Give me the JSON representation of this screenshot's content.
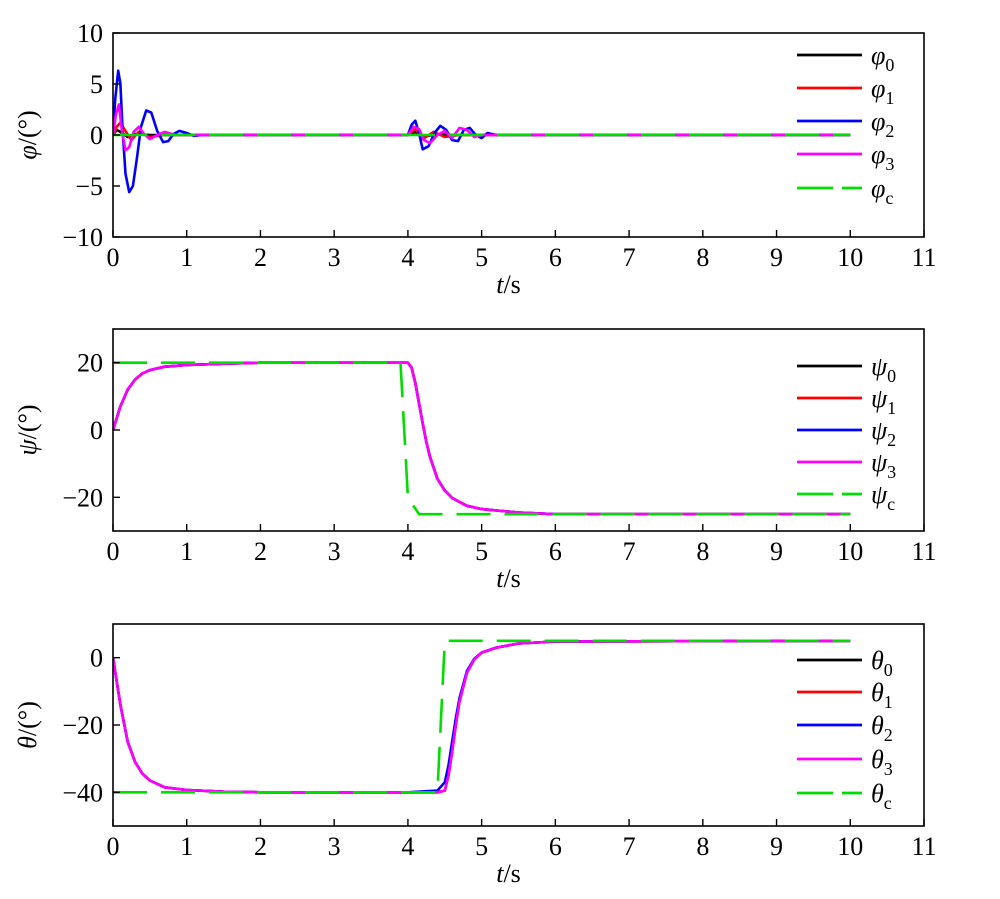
{
  "chart_data": [
    {
      "type": "line",
      "xlabel_var": "t",
      "xlabel_unit": "/s",
      "ylabel_var": "φ",
      "ylabel_unit": "/(°)",
      "xlim": [
        0,
        11
      ],
      "ylim": [
        -10,
        10
      ],
      "xticks": [
        0,
        1,
        2,
        3,
        4,
        5,
        6,
        7,
        8,
        9,
        10,
        11
      ],
      "yticks": [
        -10,
        -5,
        0,
        5,
        10
      ],
      "ytick_labels": [
        "−10",
        "−5",
        "0",
        "5",
        "10"
      ],
      "legend_position": "top-right",
      "series": [
        {
          "name_var": "φ",
          "name_sub": "0",
          "color": "#000000",
          "dash": "solid",
          "x": [
            0,
            0.05,
            0.1,
            0.2,
            0.3,
            0.5,
            0.8,
            1.2,
            4.0,
            4.1,
            4.2,
            4.4,
            4.6,
            4.8,
            5.0,
            10.0
          ],
          "y": [
            0,
            0.5,
            0.3,
            -0.2,
            0.1,
            0,
            0,
            0,
            0,
            0.3,
            -0.2,
            0.1,
            0,
            0,
            0,
            0
          ]
        },
        {
          "name_var": "φ",
          "name_sub": "1",
          "color": "#ff0000",
          "dash": "solid",
          "x": [
            0,
            0.05,
            0.1,
            0.15,
            0.25,
            0.35,
            0.5,
            0.7,
            1.0,
            4.0,
            4.1,
            4.2,
            4.35,
            4.5,
            4.7,
            5.0,
            10.0
          ],
          "y": [
            0,
            0.8,
            1.2,
            0.6,
            -0.5,
            0.3,
            -0.2,
            0,
            0,
            0,
            0.6,
            -0.4,
            0.3,
            -0.2,
            0,
            0,
            0
          ]
        },
        {
          "name_var": "φ",
          "name_sub": "2",
          "color": "#0000ff",
          "dash": "solid",
          "x": [
            0,
            0.03,
            0.07,
            0.1,
            0.13,
            0.17,
            0.22,
            0.27,
            0.32,
            0.38,
            0.45,
            0.52,
            0.6,
            0.68,
            0.75,
            0.82,
            0.9,
            1.0,
            1.1,
            1.2,
            4.0,
            4.05,
            4.1,
            4.15,
            4.2,
            4.28,
            4.36,
            4.44,
            4.52,
            4.6,
            4.68,
            4.76,
            4.84,
            4.92,
            5.0,
            5.08,
            5.2,
            10.0
          ],
          "y": [
            0,
            3.5,
            6.3,
            5.0,
            0.5,
            -3.8,
            -5.6,
            -5.0,
            -2.5,
            0.8,
            2.4,
            2.2,
            0.4,
            -0.7,
            -0.6,
            0.1,
            0.4,
            0.2,
            -0.1,
            0,
            0,
            1.0,
            1.4,
            0.2,
            -1.4,
            -1.1,
            0.2,
            0.9,
            0.5,
            -0.5,
            -0.6,
            0.5,
            0.7,
            0,
            -0.3,
            0.2,
            0,
            0
          ]
        },
        {
          "name_var": "φ",
          "name_sub": "3",
          "color": "#ff00ff",
          "dash": "solid",
          "x": [
            0,
            0.04,
            0.08,
            0.12,
            0.17,
            0.22,
            0.28,
            0.35,
            0.42,
            0.5,
            0.6,
            0.7,
            0.85,
            1.0,
            4.0,
            4.08,
            4.15,
            4.22,
            4.3,
            4.4,
            4.5,
            4.6,
            4.7,
            4.8,
            4.9,
            5.0,
            10.0
          ],
          "y": [
            0,
            2.0,
            3.0,
            0.5,
            -1.5,
            -1.2,
            0.3,
            0.8,
            0.1,
            -0.4,
            0,
            0.3,
            0,
            0,
            0,
            0.8,
            0.6,
            -0.5,
            -0.8,
            0,
            0.4,
            -0.3,
            0.7,
            0.5,
            -0.2,
            0,
            0
          ]
        },
        {
          "name_var": "φ",
          "name_sub": "c",
          "color": "#00dd00",
          "dash": "dash",
          "x": [
            0,
            10
          ],
          "y": [
            0,
            0
          ]
        }
      ]
    },
    {
      "type": "line",
      "xlabel_var": "t",
      "xlabel_unit": "/s",
      "ylabel_var": "ψ",
      "ylabel_unit": "/(°)",
      "xlim": [
        0,
        11
      ],
      "ylim": [
        -30,
        30
      ],
      "xticks": [
        0,
        1,
        2,
        3,
        4,
        5,
        6,
        7,
        8,
        9,
        10,
        11
      ],
      "yticks": [
        -20,
        0,
        20
      ],
      "ytick_labels": [
        "−20",
        "0",
        "20"
      ],
      "legend_position": "right",
      "series": [
        {
          "name_var": "ψ",
          "name_sub": "0",
          "color": "#000000",
          "dash": "solid",
          "x": [
            0,
            0.1,
            0.2,
            0.3,
            0.4,
            0.5,
            0.7,
            1.0,
            1.5,
            2.0,
            3.0,
            4.0,
            4.05,
            4.1,
            4.15,
            4.2,
            4.25,
            4.3,
            4.4,
            4.5,
            4.6,
            4.8,
            5.0,
            5.5,
            6.0,
            10.0
          ],
          "y": [
            0,
            7.0,
            12.0,
            15.0,
            16.8,
            17.8,
            18.8,
            19.3,
            19.7,
            20.0,
            20.0,
            20.0,
            18.5,
            14.0,
            8.0,
            2.0,
            -3.5,
            -8.0,
            -14.5,
            -18.0,
            -20.2,
            -22.5,
            -23.5,
            -24.5,
            -25.0,
            -25.0
          ]
        },
        {
          "name_var": "ψ",
          "name_sub": "1",
          "color": "#ff0000",
          "dash": "solid",
          "x": [
            0,
            0.1,
            0.2,
            0.3,
            0.4,
            0.5,
            0.7,
            1.0,
            1.5,
            2.0,
            3.0,
            4.0,
            4.05,
            4.1,
            4.15,
            4.2,
            4.25,
            4.3,
            4.4,
            4.5,
            4.6,
            4.8,
            5.0,
            5.5,
            6.0,
            10.0
          ],
          "y": [
            0,
            7.0,
            12.0,
            15.0,
            16.8,
            17.8,
            18.8,
            19.3,
            19.7,
            20.0,
            20.0,
            20.0,
            18.5,
            14.0,
            8.0,
            2.0,
            -3.5,
            -8.0,
            -14.5,
            -18.0,
            -20.2,
            -22.5,
            -23.5,
            -24.5,
            -25.0,
            -25.0
          ]
        },
        {
          "name_var": "ψ",
          "name_sub": "2",
          "color": "#0000ff",
          "dash": "solid",
          "x": [
            0,
            0.1,
            0.2,
            0.3,
            0.4,
            0.5,
            0.7,
            1.0,
            1.5,
            2.0,
            3.0,
            4.0,
            4.05,
            4.1,
            4.15,
            4.2,
            4.25,
            4.3,
            4.4,
            4.5,
            4.6,
            4.8,
            5.0,
            5.5,
            6.0,
            10.0
          ],
          "y": [
            0,
            7.0,
            12.0,
            15.0,
            16.8,
            17.8,
            18.8,
            19.3,
            19.7,
            20.0,
            20.0,
            20.0,
            18.5,
            14.0,
            8.0,
            2.0,
            -3.5,
            -8.0,
            -14.5,
            -18.0,
            -20.2,
            -22.5,
            -23.5,
            -24.5,
            -25.0,
            -25.0
          ]
        },
        {
          "name_var": "ψ",
          "name_sub": "3",
          "color": "#ff00ff",
          "dash": "solid",
          "x": [
            0,
            0.1,
            0.2,
            0.3,
            0.4,
            0.5,
            0.7,
            1.0,
            1.5,
            2.0,
            3.0,
            4.0,
            4.05,
            4.1,
            4.15,
            4.2,
            4.25,
            4.3,
            4.4,
            4.5,
            4.6,
            4.8,
            5.0,
            5.5,
            6.0,
            10.0
          ],
          "y": [
            0,
            7.0,
            12.0,
            15.0,
            16.8,
            17.8,
            18.8,
            19.3,
            19.7,
            20.0,
            20.0,
            20.0,
            18.5,
            14.0,
            8.0,
            2.0,
            -3.5,
            -8.0,
            -14.5,
            -18.0,
            -20.2,
            -22.5,
            -23.5,
            -24.5,
            -25.0,
            -25.0
          ]
        },
        {
          "name_var": "ψ",
          "name_sub": "c",
          "color": "#00dd00",
          "dash": "dash",
          "x": [
            0,
            3.9,
            4.0,
            4.15,
            10.0
          ],
          "y": [
            20,
            20,
            -20,
            -25,
            -25
          ]
        }
      ]
    },
    {
      "type": "line",
      "xlabel_var": "t",
      "xlabel_unit": "/s",
      "ylabel_var": "θ",
      "ylabel_unit": "/(°)",
      "xlim": [
        0,
        11
      ],
      "ylim": [
        -50,
        10
      ],
      "xticks": [
        0,
        1,
        2,
        3,
        4,
        5,
        6,
        7,
        8,
        9,
        10,
        11
      ],
      "yticks": [
        -40,
        -20,
        0
      ],
      "ytick_labels": [
        "−40",
        "−20",
        "0"
      ],
      "legend_position": "right",
      "series": [
        {
          "name_var": "θ",
          "name_sub": "0",
          "color": "#000000",
          "dash": "solid",
          "x": [
            0,
            0.1,
            0.2,
            0.3,
            0.4,
            0.5,
            0.7,
            1.0,
            1.5,
            2.0,
            3.0,
            4.0,
            4.4,
            4.5,
            4.55,
            4.6,
            4.65,
            4.7,
            4.8,
            4.9,
            5.0,
            5.2,
            5.5,
            6.0,
            10.0
          ],
          "y": [
            0,
            -14.0,
            -25.0,
            -31.0,
            -34.5,
            -36.5,
            -38.5,
            -39.3,
            -39.8,
            -40.0,
            -40.0,
            -40.0,
            -40.0,
            -39.5,
            -35.0,
            -28.0,
            -20.0,
            -13.0,
            -4.5,
            -0.5,
            1.5,
            3.0,
            4.2,
            4.8,
            5.0
          ]
        },
        {
          "name_var": "θ",
          "name_sub": "1",
          "color": "#ff0000",
          "dash": "solid",
          "x": [
            0,
            0.1,
            0.2,
            0.3,
            0.4,
            0.5,
            0.7,
            1.0,
            1.5,
            2.0,
            3.0,
            4.0,
            4.4,
            4.5,
            4.55,
            4.6,
            4.65,
            4.7,
            4.8,
            4.9,
            5.0,
            5.2,
            5.5,
            6.0,
            10.0
          ],
          "y": [
            0,
            -14.0,
            -25.0,
            -31.0,
            -34.5,
            -36.5,
            -38.5,
            -39.3,
            -39.8,
            -40.0,
            -40.0,
            -40.0,
            -40.0,
            -39.5,
            -35.0,
            -28.0,
            -20.0,
            -13.0,
            -4.5,
            -0.5,
            1.5,
            3.0,
            4.2,
            4.8,
            5.0
          ]
        },
        {
          "name_var": "θ",
          "name_sub": "2",
          "color": "#0000ff",
          "dash": "solid",
          "x": [
            0,
            0.1,
            0.2,
            0.3,
            0.4,
            0.5,
            0.7,
            1.0,
            1.5,
            2.0,
            3.0,
            4.0,
            4.4,
            4.5,
            4.55,
            4.6,
            4.65,
            4.7,
            4.8,
            4.9,
            5.0,
            5.2,
            5.5,
            6.0,
            10.0
          ],
          "y": [
            0,
            -14.0,
            -25.0,
            -31.0,
            -34.5,
            -36.5,
            -38.5,
            -39.3,
            -39.8,
            -40.0,
            -40.0,
            -40.0,
            -39.5,
            -37.0,
            -32.0,
            -25.0,
            -18.0,
            -12.0,
            -4.0,
            -0.3,
            1.5,
            3.0,
            4.2,
            4.8,
            5.0
          ]
        },
        {
          "name_var": "θ",
          "name_sub": "3",
          "color": "#ff00ff",
          "dash": "solid",
          "x": [
            0,
            0.1,
            0.2,
            0.3,
            0.4,
            0.5,
            0.7,
            1.0,
            1.5,
            2.0,
            3.0,
            4.0,
            4.4,
            4.5,
            4.55,
            4.6,
            4.65,
            4.7,
            4.8,
            4.9,
            5.0,
            5.2,
            5.5,
            6.0,
            10.0
          ],
          "y": [
            0,
            -14.0,
            -25.0,
            -31.0,
            -34.5,
            -36.5,
            -38.5,
            -39.3,
            -39.8,
            -40.0,
            -40.0,
            -40.0,
            -40.0,
            -39.5,
            -35.0,
            -28.0,
            -20.0,
            -13.0,
            -4.5,
            -0.5,
            1.5,
            3.0,
            4.2,
            4.8,
            5.0
          ]
        },
        {
          "name_var": "θ",
          "name_sub": "c",
          "color": "#00dd00",
          "dash": "dash",
          "x": [
            0,
            4.4,
            4.5,
            10.0
          ],
          "y": [
            -40,
            -40,
            5,
            5
          ]
        }
      ]
    }
  ]
}
